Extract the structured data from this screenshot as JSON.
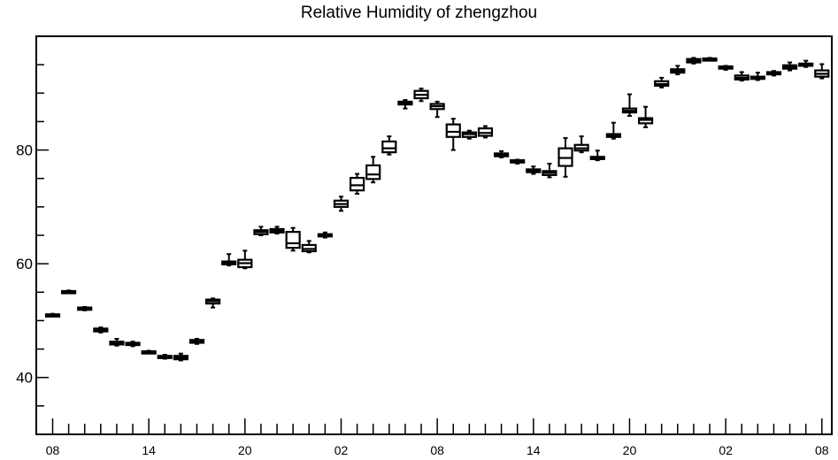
{
  "chart_data": {
    "type": "boxplot",
    "title": "Relative Humidity of zhengzhou",
    "xlabel": "",
    "ylabel": "",
    "ylim": [
      30,
      100
    ],
    "y_ticks": [
      40,
      60,
      80
    ],
    "x_tick_labels": [
      "08",
      "14",
      "20",
      "02",
      "08",
      "14",
      "20",
      "02",
      "08"
    ],
    "grid": false,
    "boxes": [
      {
        "x": 8,
        "low": 50.8,
        "q1": 50.9,
        "median": 51.0,
        "q3": 51.1,
        "high": 51.2
      },
      {
        "x": 9,
        "low": 54.9,
        "q1": 55.0,
        "median": 55.1,
        "q3": 55.2,
        "high": 55.3
      },
      {
        "x": 10,
        "low": 51.8,
        "q1": 51.9,
        "median": 52.1,
        "q3": 52.3,
        "high": 52.4
      },
      {
        "x": 11,
        "low": 47.9,
        "q1": 48.1,
        "median": 48.3,
        "q3": 48.6,
        "high": 48.8
      },
      {
        "x": 12,
        "low": 45.6,
        "q1": 45.8,
        "median": 46.0,
        "q3": 46.3,
        "high": 46.8
      },
      {
        "x": 13,
        "low": 45.5,
        "q1": 45.7,
        "median": 45.9,
        "q3": 46.1,
        "high": 46.3
      },
      {
        "x": 14,
        "low": 44.3,
        "q1": 44.4,
        "median": 44.5,
        "q3": 44.6,
        "high": 44.7
      },
      {
        "x": 15,
        "low": 43.3,
        "q1": 43.5,
        "median": 43.7,
        "q3": 43.8,
        "high": 44.0
      },
      {
        "x": 16,
        "low": 43.0,
        "q1": 43.2,
        "median": 43.5,
        "q3": 43.8,
        "high": 44.2
      },
      {
        "x": 17,
        "low": 45.9,
        "q1": 46.1,
        "median": 46.3,
        "q3": 46.6,
        "high": 46.8
      },
      {
        "x": 18,
        "low": 52.3,
        "q1": 53.0,
        "median": 53.4,
        "q3": 53.7,
        "high": 53.9
      },
      {
        "x": 19,
        "low": 59.7,
        "q1": 59.9,
        "median": 60.1,
        "q3": 60.4,
        "high": 61.7
      },
      {
        "x": 20,
        "low": 59.2,
        "q1": 59.4,
        "median": 60.1,
        "q3": 60.7,
        "high": 62.3
      },
      {
        "x": 21,
        "low": 65.0,
        "q1": 65.2,
        "median": 65.6,
        "q3": 65.9,
        "high": 66.5
      },
      {
        "x": 22,
        "low": 65.3,
        "q1": 65.5,
        "median": 65.8,
        "q3": 66.1,
        "high": 66.5
      },
      {
        "x": 23,
        "low": 62.3,
        "q1": 62.8,
        "median": 63.6,
        "q3": 65.6,
        "high": 66.3
      },
      {
        "x": 0,
        "low": 62.0,
        "q1": 62.2,
        "median": 62.6,
        "q3": 63.3,
        "high": 64.0
      },
      {
        "x": 1,
        "low": 64.6,
        "q1": 64.8,
        "median": 65.0,
        "q3": 65.2,
        "high": 65.5
      },
      {
        "x": 2,
        "low": 69.3,
        "q1": 70.0,
        "median": 70.5,
        "q3": 71.1,
        "high": 71.8
      },
      {
        "x": 3,
        "low": 72.3,
        "q1": 72.9,
        "median": 73.8,
        "q3": 75.1,
        "high": 75.8
      },
      {
        "x": 4,
        "low": 74.3,
        "q1": 74.9,
        "median": 75.7,
        "q3": 77.3,
        "high": 78.8
      },
      {
        "x": 5,
        "low": 79.2,
        "q1": 79.6,
        "median": 80.3,
        "q3": 81.5,
        "high": 82.4
      },
      {
        "x": 6,
        "low": 87.3,
        "q1": 88.0,
        "median": 88.3,
        "q3": 88.5,
        "high": 88.8
      },
      {
        "x": 7,
        "low": 88.6,
        "q1": 89.1,
        "median": 89.7,
        "q3": 90.4,
        "high": 90.8
      },
      {
        "x": 8,
        "low": 85.8,
        "q1": 87.2,
        "median": 87.7,
        "q3": 88.1,
        "high": 88.5
      },
      {
        "x": 9,
        "low": 80.0,
        "q1": 82.3,
        "median": 83.2,
        "q3": 84.5,
        "high": 85.5
      },
      {
        "x": 10,
        "low": 82.0,
        "q1": 82.3,
        "median": 82.8,
        "q3": 83.1,
        "high": 83.4
      },
      {
        "x": 11,
        "low": 82.2,
        "q1": 82.5,
        "median": 83.0,
        "q3": 83.8,
        "high": 84.2
      },
      {
        "x": 12,
        "low": 78.7,
        "q1": 78.9,
        "median": 79.2,
        "q3": 79.4,
        "high": 79.8
      },
      {
        "x": 13,
        "low": 77.6,
        "q1": 77.8,
        "median": 78.0,
        "q3": 78.2,
        "high": 78.3
      },
      {
        "x": 14,
        "low": 75.8,
        "q1": 76.1,
        "median": 76.4,
        "q3": 76.6,
        "high": 77.1
      },
      {
        "x": 15,
        "low": 75.2,
        "q1": 75.6,
        "median": 76.0,
        "q3": 76.3,
        "high": 77.6
      },
      {
        "x": 16,
        "low": 75.3,
        "q1": 77.2,
        "median": 78.6,
        "q3": 80.3,
        "high": 82.1
      },
      {
        "x": 17,
        "low": 79.6,
        "q1": 79.9,
        "median": 80.3,
        "q3": 80.9,
        "high": 82.4
      },
      {
        "x": 18,
        "low": 78.2,
        "q1": 78.4,
        "median": 78.6,
        "q3": 78.8,
        "high": 79.9
      },
      {
        "x": 19,
        "low": 82.0,
        "q1": 82.3,
        "median": 82.6,
        "q3": 82.8,
        "high": 84.8
      },
      {
        "x": 20,
        "low": 86.0,
        "q1": 86.6,
        "median": 86.9,
        "q3": 87.3,
        "high": 89.8
      },
      {
        "x": 21,
        "low": 84.0,
        "q1": 84.7,
        "median": 85.3,
        "q3": 85.6,
        "high": 87.6
      },
      {
        "x": 22,
        "low": 91.0,
        "q1": 91.3,
        "median": 91.6,
        "q3": 92.1,
        "high": 92.7
      },
      {
        "x": 23,
        "low": 93.3,
        "q1": 93.6,
        "median": 93.9,
        "q3": 94.2,
        "high": 94.8
      },
      {
        "x": 0,
        "low": 95.2,
        "q1": 95.4,
        "median": 95.7,
        "q3": 96.0,
        "high": 96.2
      },
      {
        "x": 1,
        "low": 95.8,
        "q1": 95.9,
        "median": 96.0,
        "q3": 96.1,
        "high": 96.2
      },
      {
        "x": 2,
        "low": 94.1,
        "q1": 94.3,
        "median": 94.5,
        "q3": 94.7,
        "high": 94.8
      },
      {
        "x": 3,
        "low": 92.2,
        "q1": 92.4,
        "median": 92.7,
        "q3": 93.1,
        "high": 93.7
      },
      {
        "x": 4,
        "low": 92.3,
        "q1": 92.5,
        "median": 92.7,
        "q3": 92.9,
        "high": 93.6
      },
      {
        "x": 5,
        "low": 93.1,
        "q1": 93.3,
        "median": 93.5,
        "q3": 93.7,
        "high": 93.9
      },
      {
        "x": 6,
        "low": 94.0,
        "q1": 94.3,
        "median": 94.6,
        "q3": 94.9,
        "high": 95.4
      },
      {
        "x": 7,
        "low": 94.6,
        "q1": 94.8,
        "median": 95.0,
        "q3": 95.2,
        "high": 95.7
      },
      {
        "x": 8,
        "low": 92.6,
        "q1": 92.9,
        "median": 93.4,
        "q3": 94.0,
        "high": 95.1
      }
    ]
  }
}
